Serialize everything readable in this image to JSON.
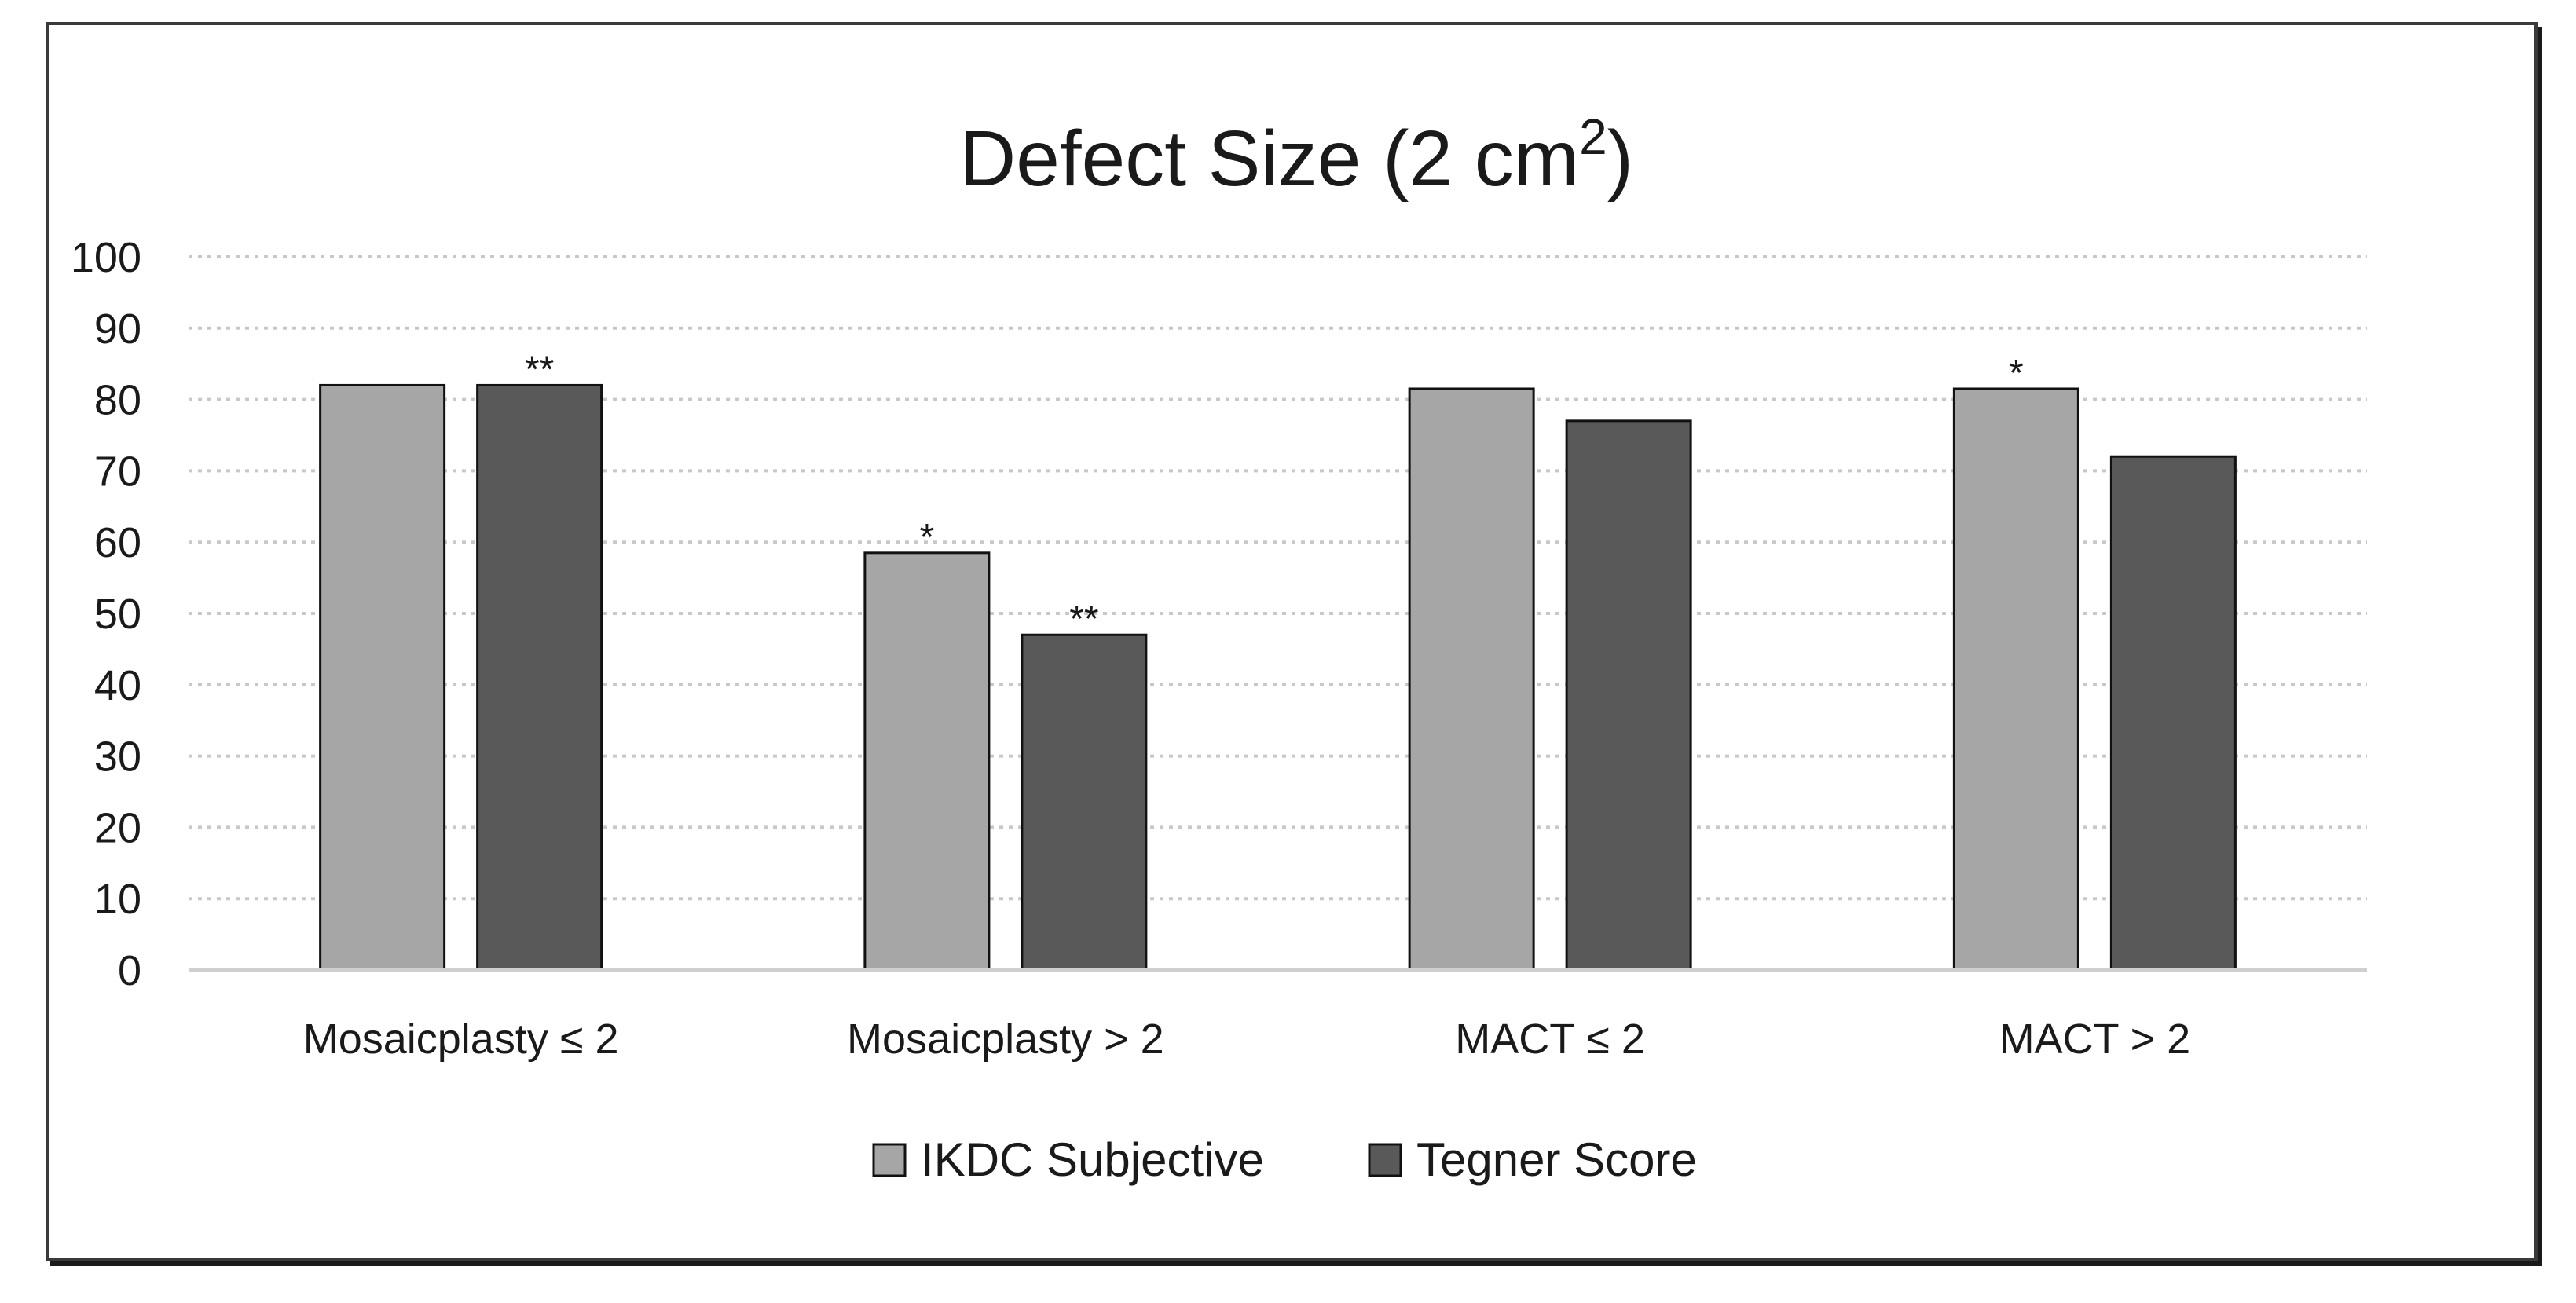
{
  "chart_data": {
    "type": "bar",
    "title": "Defect Size (2 cm",
    "title_superscript": "2",
    "title_suffix": ")",
    "categories": [
      "Mosaicplasty ≤ 2",
      "Mosaicplasty > 2",
      "MACT ≤ 2",
      "MACT > 2"
    ],
    "series": [
      {
        "name": "IKDC Subjective",
        "color": "#a6a6a6",
        "values": [
          82,
          58.5,
          81.5,
          81.5
        ],
        "annotations": [
          "",
          "*",
          "",
          "*"
        ]
      },
      {
        "name": "Tegner Score",
        "color": "#595959",
        "values": [
          82,
          47,
          77,
          72
        ],
        "annotations": [
          "**",
          "**",
          "",
          ""
        ]
      }
    ],
    "ylim": [
      0,
      100
    ],
    "yticks": [
      0,
      10,
      20,
      30,
      40,
      50,
      60,
      70,
      80,
      90,
      100
    ],
    "xlabel": "",
    "ylabel": "",
    "grid": true,
    "legend": "bottom-center"
  }
}
